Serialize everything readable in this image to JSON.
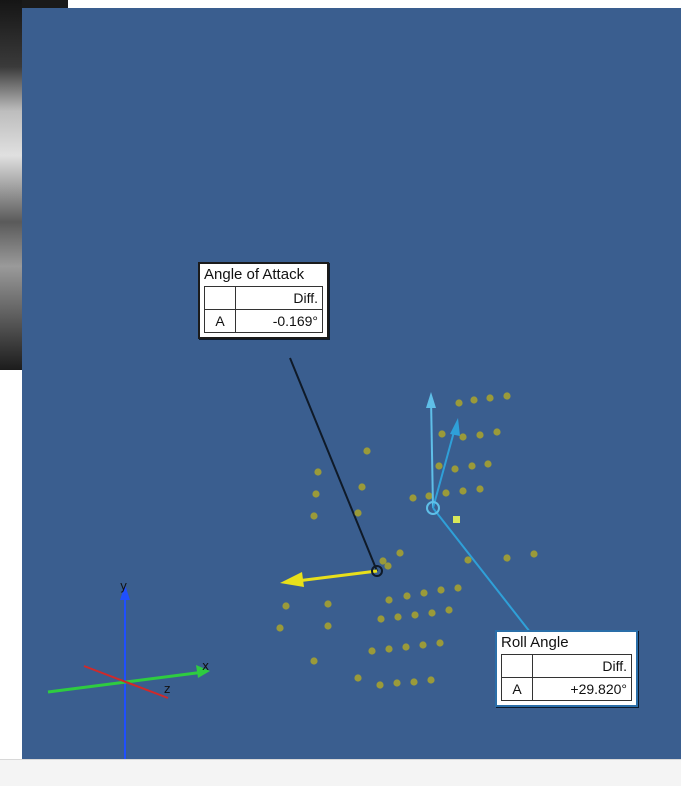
{
  "angle_of_attack": {
    "title": "Angle of Attack",
    "column_header": "Diff.",
    "row_label": "A",
    "value": "-0.169°"
  },
  "roll_angle": {
    "title": "Roll Angle",
    "column_header": "Diff.",
    "row_label": "A",
    "value": "+29.820°"
  },
  "triad": {
    "x_label": "x",
    "y_label": "y",
    "z_label": "z"
  },
  "colors": {
    "viewport_background": "#3a5e8f",
    "point_marker": "#9a9a3a",
    "aoa_vector": "#e8e01a",
    "roll_leader": "#2fa0d8",
    "x_axis": "#2ecc40",
    "y_axis": "#1f4fff",
    "z_axis": "#d02a2a"
  },
  "icons": {
    "triad": "coordinate-triad-icon",
    "aoa_vector": "arrow-vector-icon",
    "roll_vector": "arrow-vector-icon"
  }
}
